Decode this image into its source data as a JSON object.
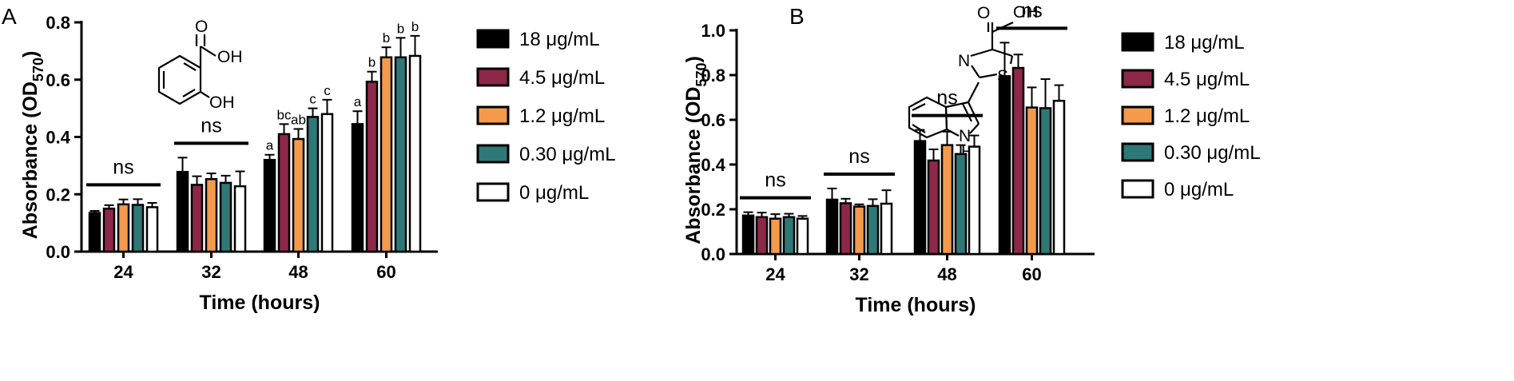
{
  "panels": [
    {
      "letter": "A"
    },
    {
      "letter": "B"
    }
  ],
  "structures": [
    {
      "atoms": [
        "O",
        "OH",
        "OH"
      ]
    },
    {
      "atoms": [
        "O",
        "OH",
        "N",
        "S",
        "N",
        "H"
      ]
    }
  ],
  "chart_data": [
    {
      "type": "bar",
      "panel": "A",
      "xlabel": "Time (hours)",
      "ylabel": "Absorbance (OD",
      "ylabel_sub": "570",
      "ylabel_close": ")",
      "categories": [
        "24",
        "32",
        "48",
        "60"
      ],
      "ylim": [
        0,
        0.8
      ],
      "yticks": [
        "0.0",
        "0.2",
        "0.4",
        "0.6",
        "0.8"
      ],
      "series": [
        {
          "name": "18 μg/mL",
          "color": "#000000",
          "values": [
            0.135,
            0.278,
            0.32,
            0.445
          ],
          "errors": [
            0.007,
            0.05,
            0.018,
            0.045
          ],
          "labels": [
            "",
            "",
            "a",
            "a"
          ]
        },
        {
          "name": "4.5 μg/mL",
          "color": "#8e2848",
          "values": [
            0.15,
            0.233,
            0.41,
            0.593
          ],
          "errors": [
            0.012,
            0.03,
            0.035,
            0.035
          ],
          "labels": [
            "",
            "",
            "bc",
            "b"
          ]
        },
        {
          "name": "1.2 μg/mL",
          "color": "#f49a4c",
          "values": [
            0.165,
            0.253,
            0.393,
            0.678
          ],
          "errors": [
            0.017,
            0.02,
            0.035,
            0.035
          ],
          "labels": [
            "",
            "",
            "ab",
            "b"
          ]
        },
        {
          "name": "0.30 μg/mL",
          "color": "#2e7877",
          "values": [
            0.163,
            0.24,
            0.47,
            0.678
          ],
          "errors": [
            0.02,
            0.025,
            0.03,
            0.068
          ],
          "labels": [
            "",
            "",
            "c",
            "b"
          ]
        },
        {
          "name": "0 μg/mL",
          "color": "#ffffff",
          "values": [
            0.155,
            0.228,
            0.48,
            0.683
          ],
          "errors": [
            0.015,
            0.052,
            0.05,
            0.07
          ],
          "labels": [
            "",
            "",
            "c",
            "b"
          ]
        }
      ],
      "ns_groups": [
        0,
        1
      ],
      "ns_label": "ns"
    },
    {
      "type": "bar",
      "panel": "B",
      "xlabel": "Time (hours)",
      "ylabel": "Absorbance (OD",
      "ylabel_sub": "570",
      "ylabel_close": ")",
      "categories": [
        "24",
        "32",
        "48",
        "60"
      ],
      "ylim": [
        0,
        1.0
      ],
      "yticks": [
        "0.0",
        "0.2",
        "0.4",
        "0.6",
        "0.8",
        "1.0"
      ],
      "series": [
        {
          "name": "18 μg/mL",
          "color": "#000000",
          "values": [
            0.172,
            0.243,
            0.505,
            0.795
          ],
          "errors": [
            0.015,
            0.05,
            0.05,
            0.15
          ]
        },
        {
          "name": "4.5 μg/mL",
          "color": "#8e2848",
          "values": [
            0.165,
            0.227,
            0.418,
            0.832
          ],
          "errors": [
            0.02,
            0.02,
            0.05,
            0.06
          ]
        },
        {
          "name": "1.2 μg/mL",
          "color": "#f49a4c",
          "values": [
            0.158,
            0.212,
            0.487,
            0.655
          ],
          "errors": [
            0.02,
            0.01,
            0.06,
            0.09
          ]
        },
        {
          "name": "0.30 μg/mL",
          "color": "#2e7877",
          "values": [
            0.165,
            0.215,
            0.447,
            0.652
          ],
          "errors": [
            0.015,
            0.03,
            0.04,
            0.13
          ]
        },
        {
          "name": "0 μg/mL",
          "color": "#ffffff",
          "values": [
            0.158,
            0.225,
            0.48,
            0.685
          ],
          "errors": [
            0.012,
            0.06,
            0.05,
            0.07
          ]
        }
      ],
      "ns_groups": [
        0,
        1,
        2,
        3
      ],
      "ns_label": "ns"
    }
  ]
}
